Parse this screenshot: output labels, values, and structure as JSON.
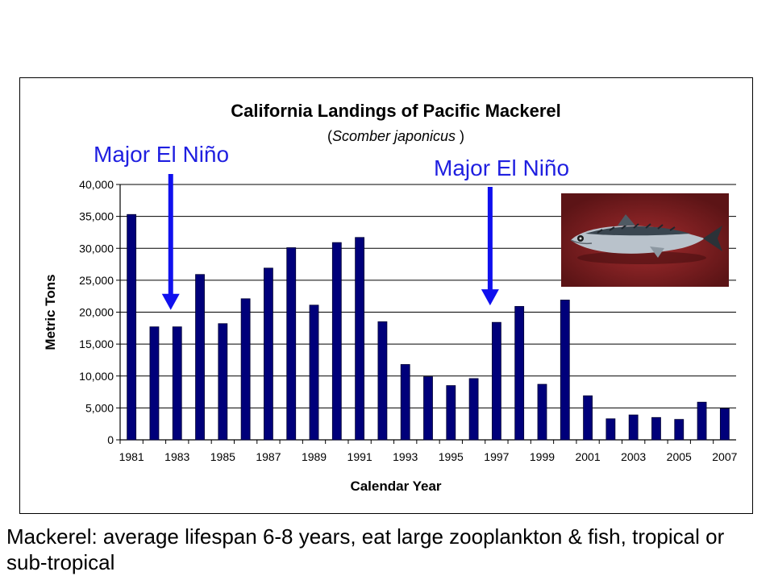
{
  "annotations": [
    {
      "label": "Major El Niño",
      "year": 1983
    },
    {
      "label": "Major El Niño",
      "year": 1997
    }
  ],
  "caption": "Mackerel: average lifespan 6-8 years, eat large zooplankton & fish, tropical or sub-tropical",
  "photo": {
    "subject": "pacific-mackerel-photo",
    "background_color": "#7a1f22",
    "fish_color": "#aab3bd",
    "fin_color": "#2b3238"
  },
  "colors": {
    "bar": "#00007a",
    "bar_edge": "#000033",
    "gridline": "#000000",
    "annotation": "#1f1fe0",
    "arrow": "#1010ee"
  },
  "chart_data": {
    "type": "bar",
    "title": "California Landings of Pacific Mackerel",
    "subtitle_prefix": "(",
    "subtitle_italic": "Scomber japonicus",
    "subtitle_suffix": " )",
    "xlabel": "Calendar Year",
    "ylabel": "Metric Tons",
    "ylim": [
      0,
      40000
    ],
    "y_ticks": [
      0,
      5000,
      10000,
      15000,
      20000,
      25000,
      30000,
      35000,
      40000
    ],
    "y_tick_labels": [
      "0",
      "5,000",
      "10,000",
      "15,000",
      "20,000",
      "25,000",
      "30,000",
      "35,000",
      "40,000"
    ],
    "grid": true,
    "categories": [
      1981,
      1982,
      1983,
      1984,
      1985,
      1986,
      1987,
      1988,
      1989,
      1990,
      1991,
      1992,
      1993,
      1994,
      1995,
      1996,
      1997,
      1998,
      1999,
      2000,
      2001,
      2002,
      2003,
      2004,
      2005,
      2006,
      2007
    ],
    "x_tick_labels": [
      "1981",
      "1983",
      "1985",
      "1987",
      "1989",
      "1991",
      "1993",
      "1995",
      "1997",
      "1999",
      "2001",
      "2003",
      "2005",
      "2007"
    ],
    "values": [
      35300,
      17700,
      17700,
      25900,
      18200,
      22100,
      26900,
      30100,
      21100,
      30900,
      31700,
      18500,
      11800,
      9900,
      8500,
      9600,
      18400,
      20900,
      8700,
      21900,
      6900,
      3300,
      3900,
      3500,
      3200,
      5900,
      4900
    ]
  }
}
